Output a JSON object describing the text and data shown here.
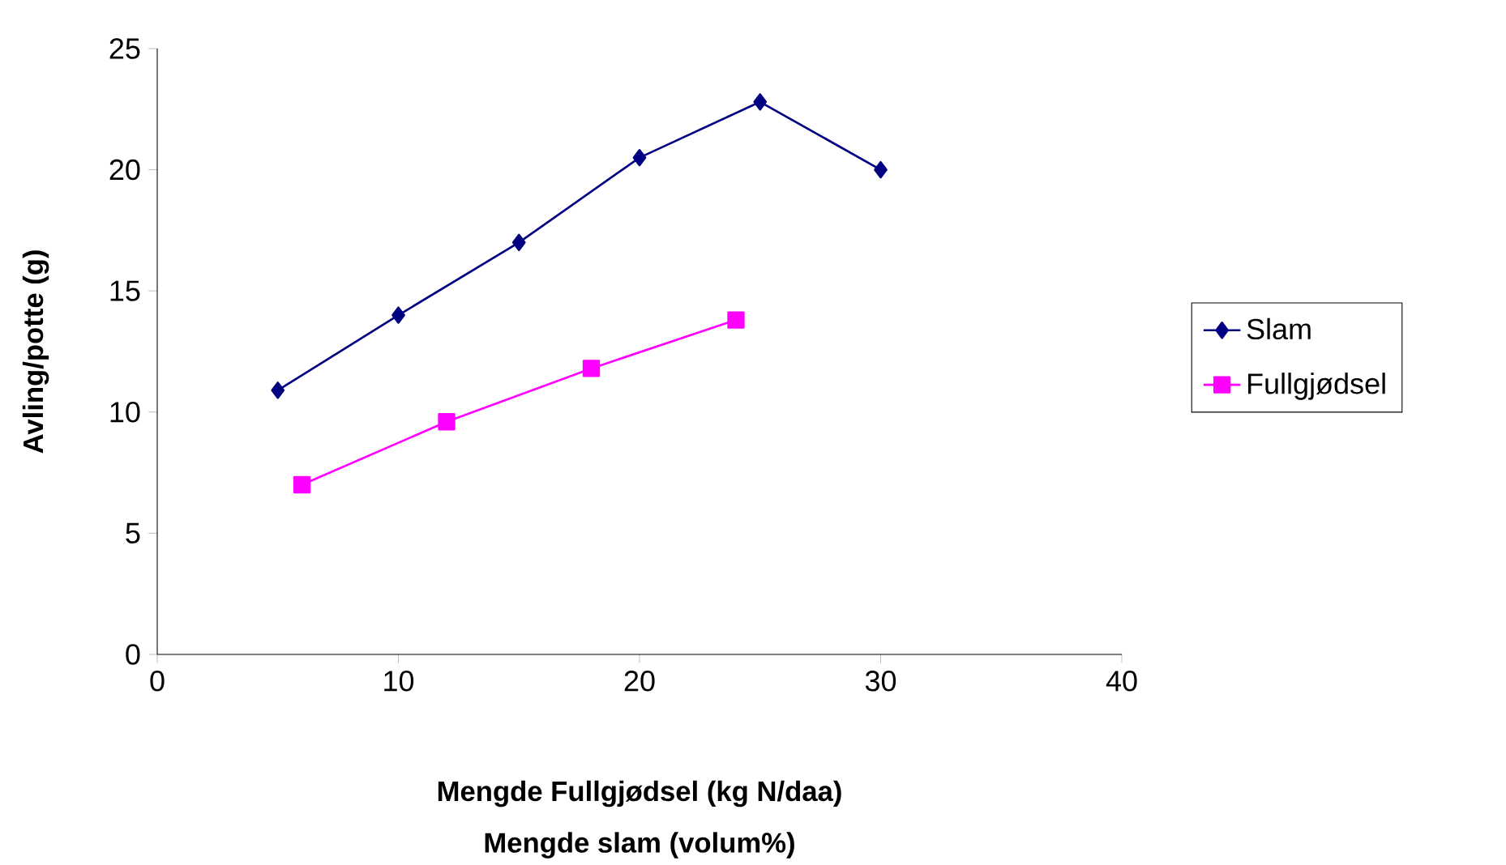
{
  "chart_data": {
    "type": "line",
    "xlabel": "Mengde Fullgjødsel (kg N/daa)",
    "ylabel": "Avling/potte (g)",
    "annotations": [
      "Mengde slam (volum%)"
    ],
    "xlim": [
      0,
      40
    ],
    "xticks": [
      0,
      10,
      20,
      30,
      40
    ],
    "ylim": [
      0,
      25
    ],
    "yticks": [
      0,
      5,
      10,
      15,
      20,
      25
    ],
    "legend": "right",
    "grid": false,
    "series": [
      {
        "name": "Slam",
        "color": "#000080",
        "marker": "diamond",
        "x": [
          5,
          10,
          15,
          20,
          25,
          30
        ],
        "values": [
          10.9,
          14,
          17,
          20.5,
          22.8,
          20
        ]
      },
      {
        "name": "Fullgjødsel",
        "color": "#ff00ff",
        "marker": "square",
        "x": [
          6,
          12,
          18,
          24
        ],
        "values": [
          7.0,
          9.6,
          11.8,
          13.8
        ]
      }
    ]
  }
}
